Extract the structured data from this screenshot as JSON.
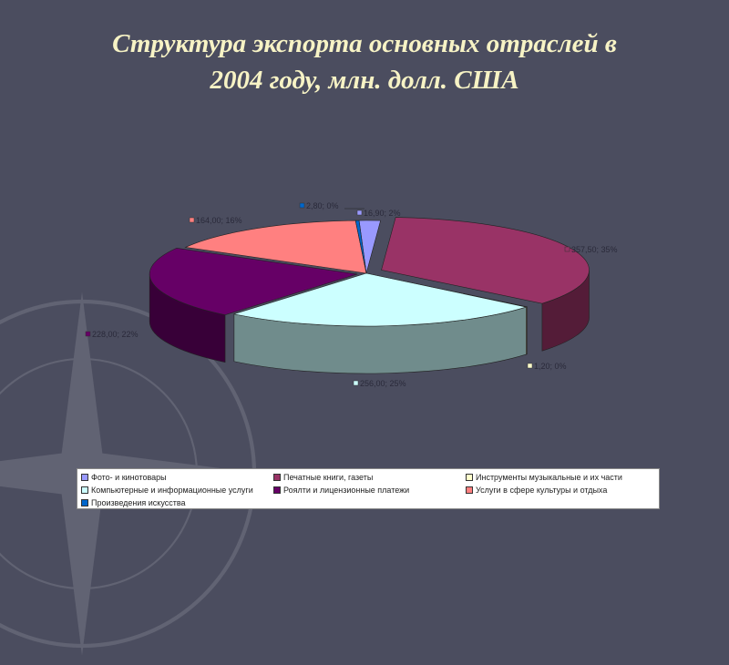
{
  "title_line1": "Структура экспорта основных отраслей в",
  "title_line2": "2004 году, млн. долл. США",
  "chart_data": {
    "type": "pie",
    "style": "3d-exploded",
    "series": [
      {
        "name": "Фото- и кинотовары",
        "value": 16.9,
        "label": "16,90; 2%",
        "color": "#9999ff"
      },
      {
        "name": "Печатные книги, газеты",
        "value": 357.5,
        "label": "357,50; 35%",
        "color": "#993366"
      },
      {
        "name": "Инструменты музыкальные и их части",
        "value": 1.2,
        "label": "1,20; 0%",
        "color": "#ffffcc"
      },
      {
        "name": "Компьютерные и информационные услуги",
        "value": 256.0,
        "label": "256,00; 25%",
        "color": "#ccffff"
      },
      {
        "name": "Роялти и лицензионные платежи",
        "value": 228.0,
        "label": "228,00; 22%",
        "color": "#660066"
      },
      {
        "name": "Услуги в сфере культуры и отдыха",
        "value": 164.0,
        "label": "164,00; 16%",
        "color": "#ff8080"
      },
      {
        "name": "Произведения искусства",
        "value": 2.8,
        "label": "2,80; 0%",
        "color": "#0066cc"
      }
    ],
    "legend_position": "bottom"
  }
}
